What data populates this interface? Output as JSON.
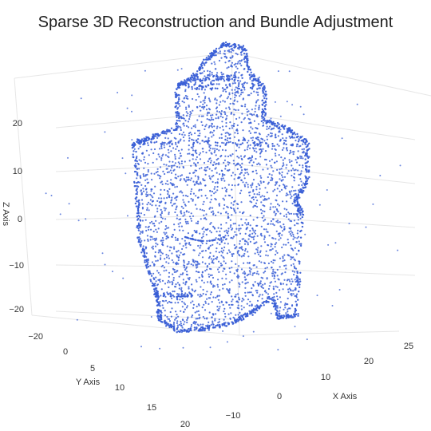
{
  "chart_data": {
    "type": "scatter",
    "title": "Sparse 3D Reconstruction and Bundle Adjustment",
    "marker_color": "#3a5fd6",
    "axes": {
      "x": {
        "label": "X Axis",
        "range": [
          -10,
          25
        ],
        "ticks": [
          "−10",
          "0",
          "10",
          "20",
          "25"
        ]
      },
      "y": {
        "label": "Y Axis",
        "range": [
          -20,
          20
        ],
        "ticks": [
          "−20",
          "0",
          "5",
          "10",
          "15",
          "20"
        ]
      },
      "z": {
        "label": "Z Axis",
        "range": [
          -25,
          25
        ],
        "ticks": [
          "20",
          "10",
          "0",
          "−10",
          "−20"
        ]
      }
    },
    "grid": true,
    "legend": "none"
  }
}
